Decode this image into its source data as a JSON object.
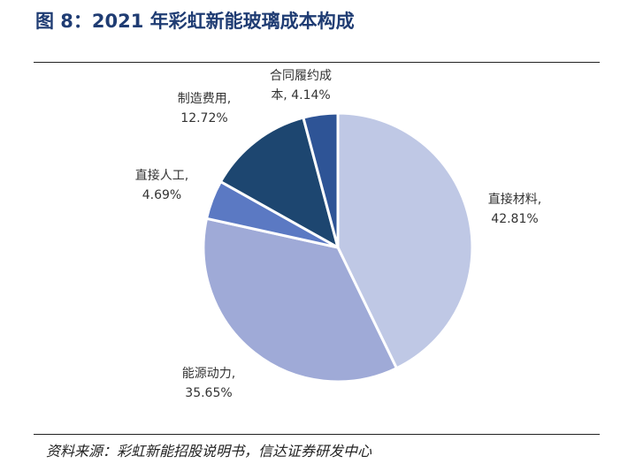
{
  "title": "图 8：2021 年彩虹新能玻璃成本构成",
  "source": "资料来源：彩虹新能招股说明书，信达证券研发中心",
  "chart_data": {
    "type": "pie",
    "start_angle_deg": 0,
    "direction": "clockwise",
    "legend": "none",
    "slices": [
      {
        "label_lines": [
          "直接材料,",
          "42.81%"
        ],
        "value": 42.81,
        "color": "#bfc8e5"
      },
      {
        "label_lines": [
          "能源动力,",
          "35.65%"
        ],
        "value": 35.65,
        "color": "#9faad7"
      },
      {
        "label_lines": [
          "直接人工,",
          "4.69%"
        ],
        "value": 4.69,
        "color": "#5b79c3"
      },
      {
        "label_lines": [
          "制造费用,",
          "12.72%"
        ],
        "value": 12.72,
        "color": "#1d4670"
      },
      {
        "label_lines": [
          "合同履约成",
          "本, 4.14%"
        ],
        "value": 4.14,
        "color": "#2e5496"
      }
    ]
  }
}
